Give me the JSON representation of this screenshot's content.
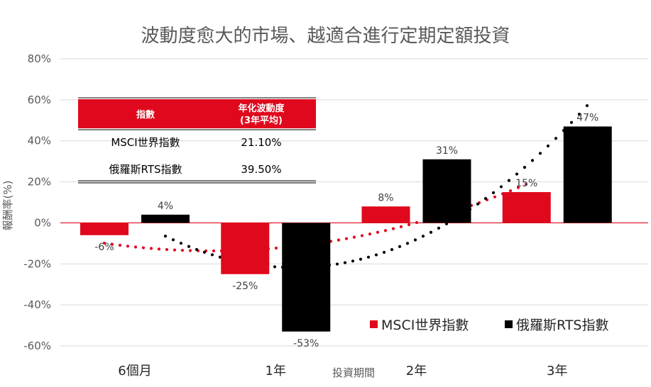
{
  "colors": {
    "msci": "#e0081c",
    "rts": "#000000",
    "gridline": "#d9d9d9",
    "zero_line": "#e0081c",
    "axis_text": "#595959",
    "table_header_bg": "#e0081c"
  },
  "chart_data": {
    "type": "bar",
    "title": "波動度愈大的市場、越適合進行定期定額投資",
    "xlabel": "投資期間",
    "ylabel": "報酬率(%)",
    "categories": [
      "6個月",
      "1年",
      "2年",
      "3年"
    ],
    "series": [
      {
        "name": "MSCI世界指數",
        "values": [
          -6,
          -25,
          8,
          15
        ],
        "labels": [
          "-6%",
          "-25%",
          "8%",
          "15%"
        ]
      },
      {
        "name": "俄羅斯RTS指數",
        "values": [
          4,
          -53,
          31,
          47
        ],
        "labels": [
          "4%",
          "-53%",
          "31%",
          "47%"
        ]
      }
    ],
    "ylim": [
      -60,
      80
    ],
    "yticks": [
      80,
      60,
      40,
      20,
      0,
      -20,
      -40,
      -60
    ],
    "ytick_labels": [
      "80%",
      "60%",
      "40%",
      "20%",
      "0%",
      "-20%",
      "-40%",
      "-60%"
    ],
    "grid": true,
    "legend_position": "bottom-right",
    "trendlines": [
      {
        "series": "MSCI世界指數",
        "style": "dotted",
        "shape": "polynomial"
      },
      {
        "series": "俄羅斯RTS指數",
        "style": "dotted",
        "shape": "polynomial"
      }
    ]
  },
  "inset_table": {
    "headers": [
      "指數",
      "年化波動度",
      "(3年平均)"
    ],
    "rows": [
      [
        "MSCI世界指數",
        "21.10%"
      ],
      [
        "俄羅斯RTS指數",
        "39.50%"
      ]
    ]
  }
}
